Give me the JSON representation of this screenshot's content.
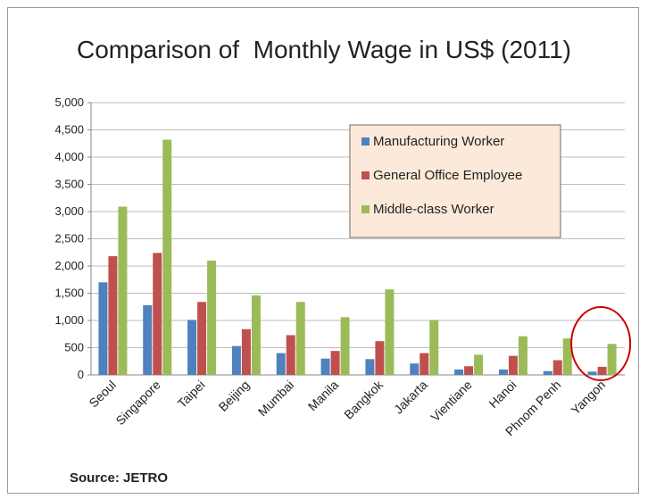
{
  "chart_data": {
    "type": "bar",
    "title": "Comparison of  Monthly Wage in US$ (2011)",
    "source": "Source: JETRO",
    "categories": [
      "Seoul",
      "Singapore",
      "Taipei",
      "Beijing",
      "Mumbai",
      "Manila",
      "Bangkok",
      "Jakarta",
      "Vientiane",
      "Hanoi",
      "Phnom Penh",
      "Yangon"
    ],
    "series": [
      {
        "name": "Manufacturing Worker",
        "color": "#4f81bd",
        "values": [
          1700,
          1280,
          1010,
          530,
          400,
          300,
          290,
          210,
          100,
          100,
          70,
          60
        ]
      },
      {
        "name": "General Office Employee",
        "color": "#c0504d",
        "values": [
          2180,
          2240,
          1340,
          840,
          730,
          440,
          620,
          400,
          160,
          350,
          270,
          150
        ]
      },
      {
        "name": "Middle-class Worker",
        "color": "#9bbb59",
        "values": [
          3090,
          4320,
          2100,
          1460,
          1340,
          1060,
          1570,
          1010,
          370,
          710,
          670,
          570
        ]
      }
    ],
    "ylim": [
      0,
      5000
    ],
    "yticks": [
      "0",
      "500",
      "1,000",
      "1,500",
      "2,000",
      "2,500",
      "3,000",
      "3,500",
      "4,000",
      "4,500",
      "5,000"
    ],
    "grid": true,
    "legend_position": "top-right",
    "legend_background": "#fde9d9",
    "highlight_color": "#cc0000"
  }
}
